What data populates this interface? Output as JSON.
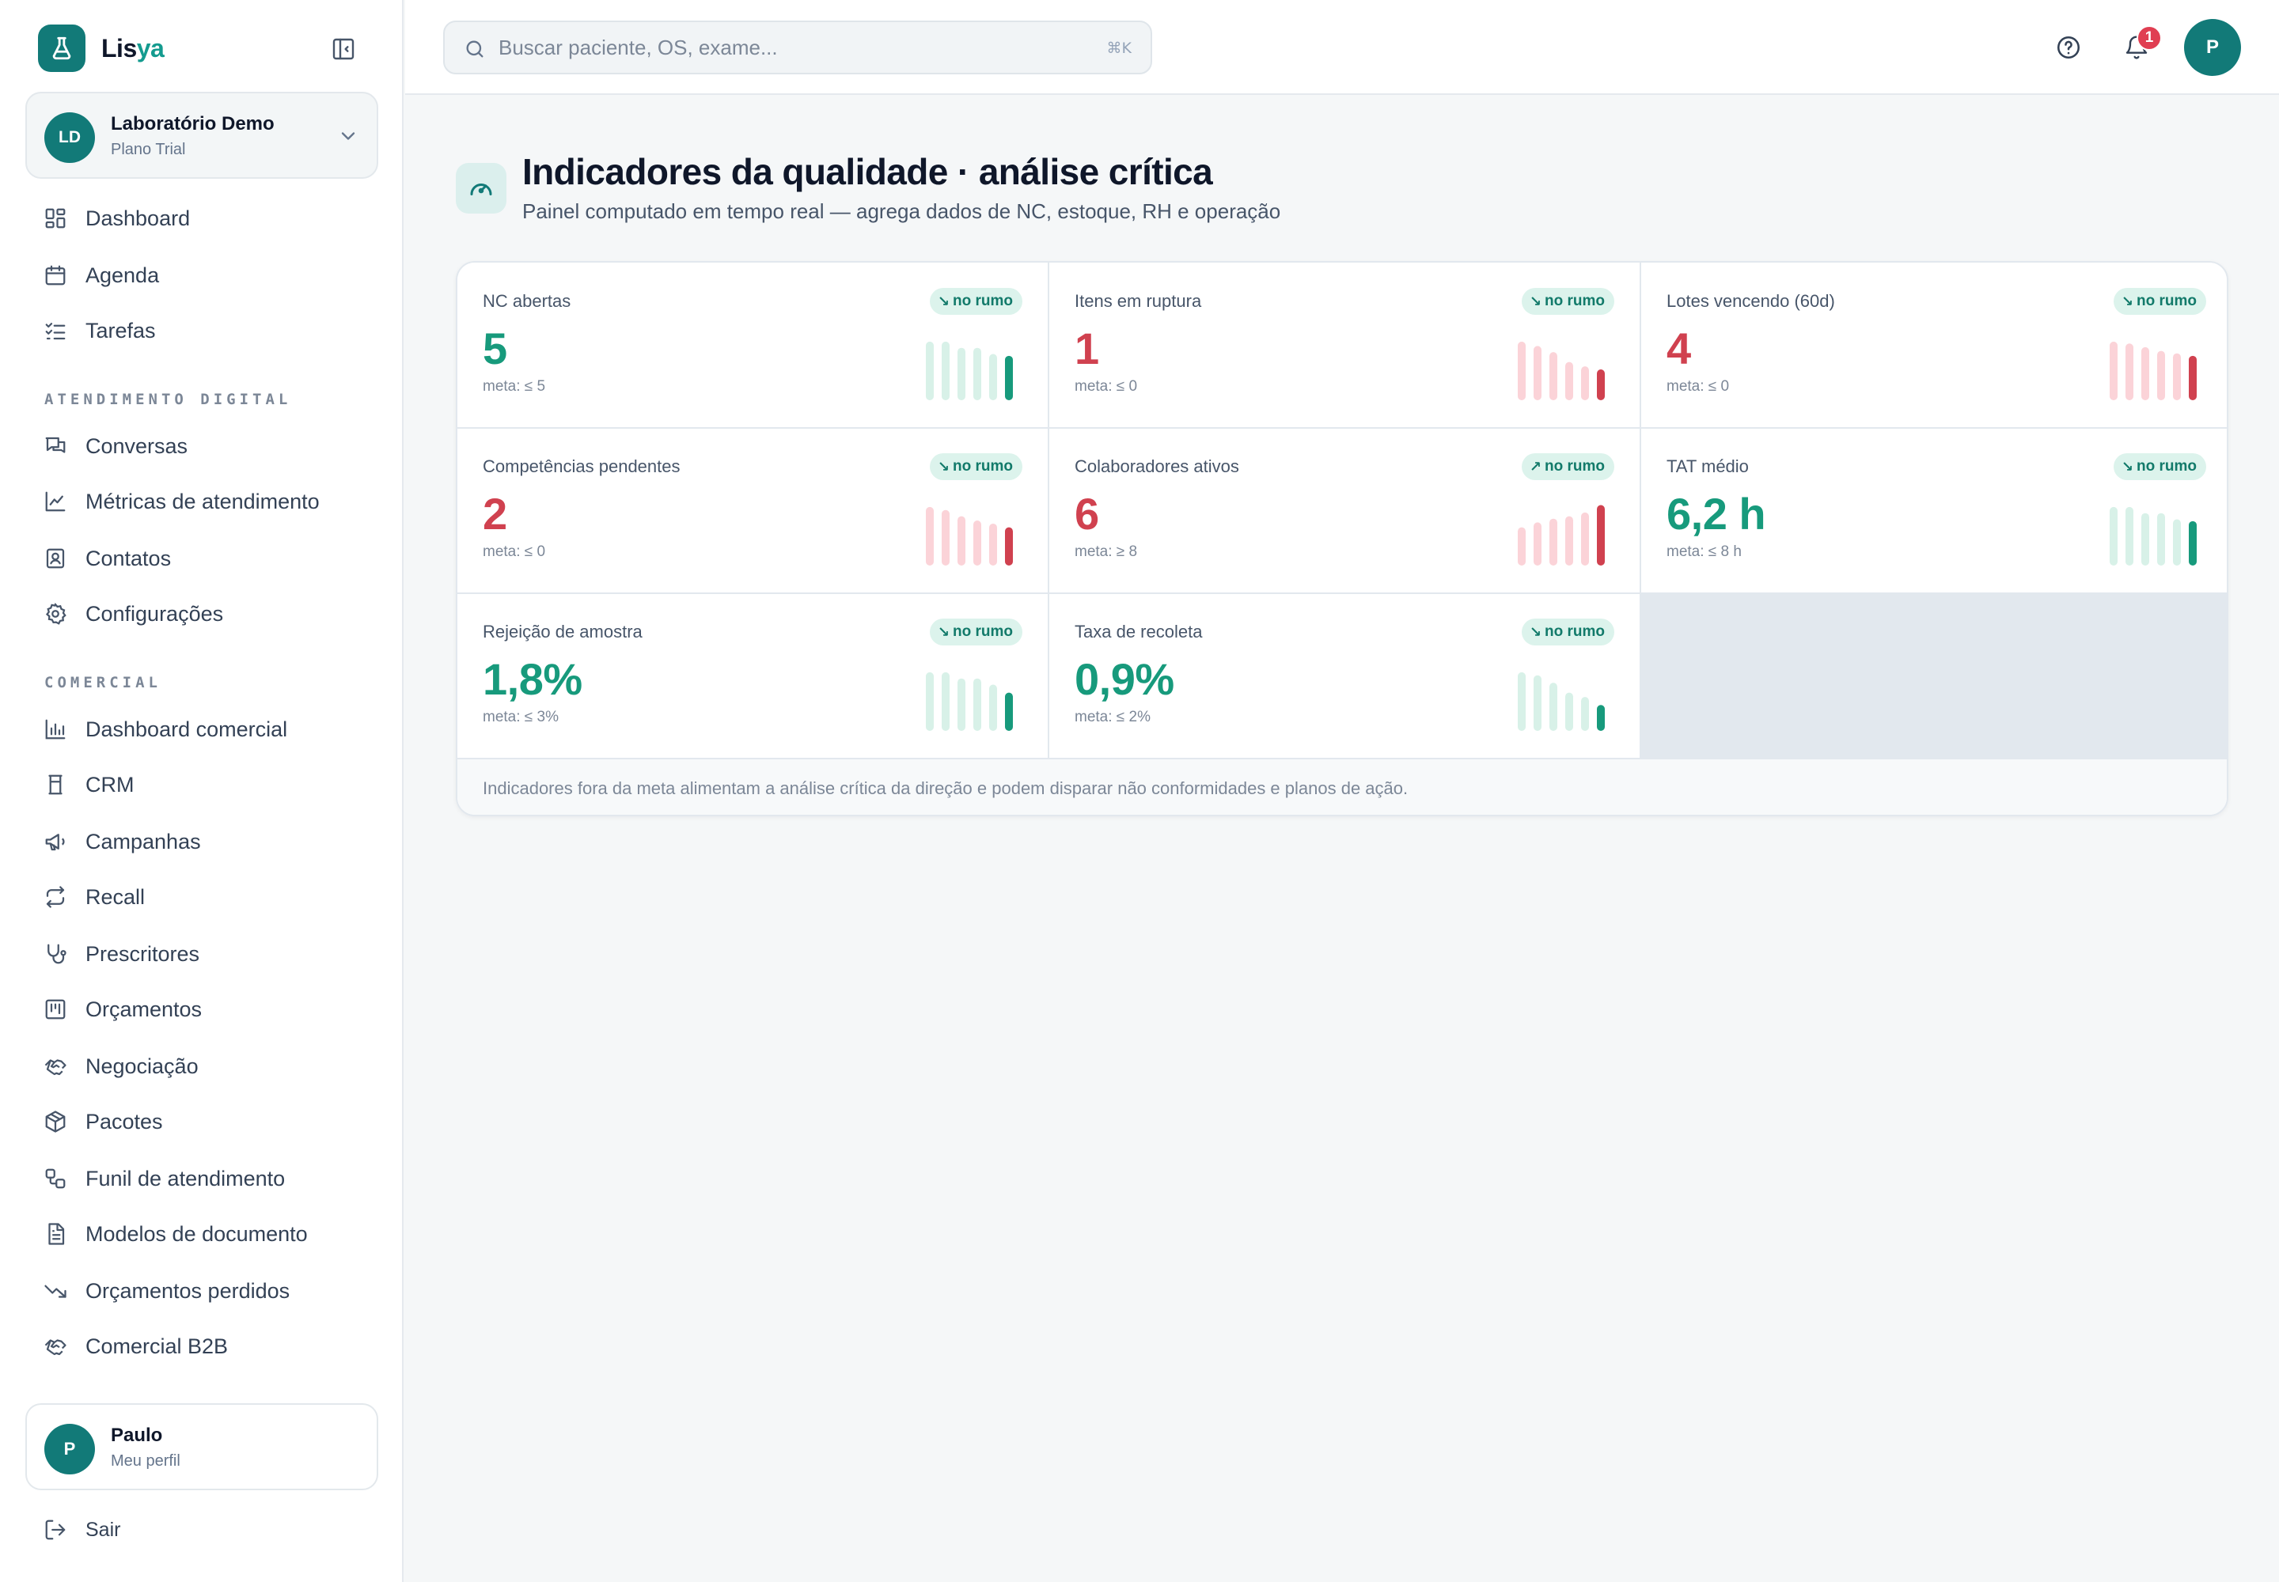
{
  "brand": {
    "name_part1": "Lis",
    "name_part2": "ya"
  },
  "org": {
    "initials": "LD",
    "name": "Laboratório Demo",
    "plan": "Plano Trial"
  },
  "sidebar": {
    "items_top": [
      {
        "label": "Dashboard",
        "icon": "dashboard-icon"
      },
      {
        "label": "Agenda",
        "icon": "calendar-icon"
      },
      {
        "label": "Tarefas",
        "icon": "task-list-icon"
      }
    ],
    "section_digital": "ATENDIMENTO DIGITAL",
    "items_digital": [
      {
        "label": "Conversas",
        "icon": "chat-icon"
      },
      {
        "label": "Métricas de atendimento",
        "icon": "line-chart-icon"
      },
      {
        "label": "Contatos",
        "icon": "contact-icon"
      },
      {
        "label": "Configurações",
        "icon": "gear-icon"
      }
    ],
    "section_comercial": "COMERCIAL",
    "items_comercial": [
      {
        "label": "Dashboard comercial",
        "icon": "bar-chart-icon"
      },
      {
        "label": "CRM",
        "icon": "crm-icon"
      },
      {
        "label": "Campanhas",
        "icon": "megaphone-icon"
      },
      {
        "label": "Recall",
        "icon": "repeat-icon"
      },
      {
        "label": "Prescritores",
        "icon": "stethoscope-icon"
      },
      {
        "label": "Orçamentos",
        "icon": "kanban-icon"
      },
      {
        "label": "Negociação",
        "icon": "handshake-icon"
      },
      {
        "label": "Pacotes",
        "icon": "package-icon"
      },
      {
        "label": "Funil de atendimento",
        "icon": "workflow-icon"
      },
      {
        "label": "Modelos de documento",
        "icon": "document-icon"
      },
      {
        "label": "Orçamentos perdidos",
        "icon": "trending-down-icon"
      },
      {
        "label": "Comercial B2B",
        "icon": "handshake-icon"
      }
    ]
  },
  "profile": {
    "initial": "P",
    "name": "Paulo",
    "subtitle": "Meu perfil"
  },
  "logout_label": "Sair",
  "search": {
    "placeholder": "Buscar paciente, OS, exame...",
    "shortcut": "⌘K"
  },
  "topbar": {
    "notification_count": "1",
    "user_initial": "P"
  },
  "page": {
    "title": "Indicadores da qualidade · análise crítica",
    "subtitle": "Painel computado em tempo real — agrega dados de NC, estoque, RH e operação"
  },
  "colors": {
    "good": "#179a7c",
    "bad": "#d0414f",
    "good_light": "#d8f1e8",
    "bad_light": "#fbd3d8",
    "accent": "#127a78"
  },
  "indicators": [
    {
      "label": "NC abertas",
      "value": "5",
      "meta": "meta: ≤ 5",
      "status": "no rumo",
      "trend_icon": "trending-down-icon",
      "trend_glyph": "↘",
      "value_tone": "good",
      "bar_tone": "good",
      "spark": [
        0.95,
        0.95,
        0.85,
        0.85,
        0.75,
        0.72
      ]
    },
    {
      "label": "Itens em ruptura",
      "value": "1",
      "meta": "meta: ≤ 0",
      "status": "no rumo",
      "trend_icon": "trending-down-icon",
      "trend_glyph": "↘",
      "value_tone": "bad",
      "bar_tone": "bad",
      "spark": [
        0.95,
        0.88,
        0.78,
        0.62,
        0.55,
        0.5
      ]
    },
    {
      "label": "Lotes vencendo (60d)",
      "value": "4",
      "meta": "meta: ≤ 0",
      "status": "no rumo",
      "trend_icon": "trending-down-icon",
      "trend_glyph": "↘",
      "value_tone": "bad",
      "bar_tone": "bad",
      "spark": [
        0.95,
        0.92,
        0.86,
        0.8,
        0.76,
        0.72
      ]
    },
    {
      "label": "Competências pendentes",
      "value": "2",
      "meta": "meta: ≤ 0",
      "status": "no rumo",
      "trend_icon": "trending-down-icon",
      "trend_glyph": "↘",
      "value_tone": "bad",
      "bar_tone": "bad",
      "spark": [
        0.95,
        0.9,
        0.8,
        0.73,
        0.68,
        0.62
      ]
    },
    {
      "label": "Colaboradores ativos",
      "value": "6",
      "meta": "meta: ≥ 8",
      "status": "no rumo",
      "trend_icon": "trending-up-icon",
      "trend_glyph": "↗",
      "value_tone": "bad",
      "bar_tone": "bad",
      "spark": [
        0.62,
        0.7,
        0.76,
        0.8,
        0.86,
        0.98
      ]
    },
    {
      "label": "TAT médio",
      "value": "6,2 h",
      "meta": "meta: ≤ 8 h",
      "status": "no rumo",
      "trend_icon": "trending-down-icon",
      "trend_glyph": "↘",
      "value_tone": "good",
      "bar_tone": "good",
      "spark": [
        0.95,
        0.95,
        0.85,
        0.85,
        0.75,
        0.72
      ]
    },
    {
      "label": "Rejeição de amostra",
      "value": "1,8%",
      "meta": "meta: ≤ 3%",
      "status": "no rumo",
      "trend_icon": "trending-down-icon",
      "trend_glyph": "↘",
      "value_tone": "good",
      "bar_tone": "good",
      "spark": [
        0.95,
        0.95,
        0.85,
        0.85,
        0.75,
        0.62
      ]
    },
    {
      "label": "Taxa de recoleta",
      "value": "0,9%",
      "meta": "meta: ≤ 2%",
      "status": "no rumo",
      "trend_icon": "trending-down-icon",
      "trend_glyph": "↘",
      "value_tone": "good",
      "bar_tone": "good",
      "spark": [
        0.95,
        0.9,
        0.78,
        0.62,
        0.55,
        0.42
      ]
    }
  ],
  "panel_footer": "Indicadores fora da meta alimentam a análise crítica da direção e podem disparar não conformidades e planos de ação."
}
